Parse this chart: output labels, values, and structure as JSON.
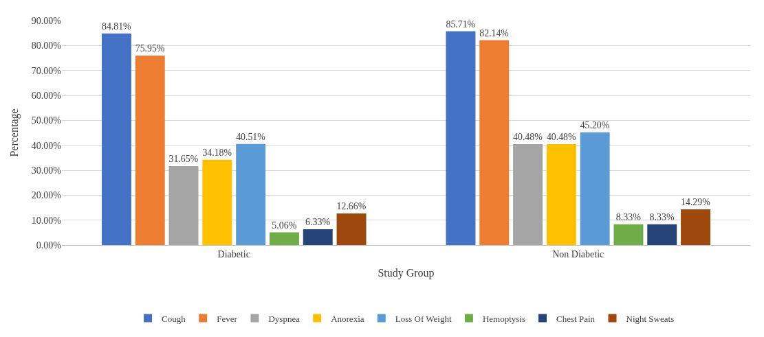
{
  "chart_data": {
    "type": "bar",
    "xlabel": "Study Group",
    "ylabel": "Percentage",
    "categories": [
      "Diabetic",
      "Non Diabetic"
    ],
    "series": [
      {
        "name": "Cough",
        "color": "#4472c4",
        "values": [
          84.81,
          85.71
        ],
        "value_labels": [
          "84.81%",
          "85.71%"
        ]
      },
      {
        "name": "Fever",
        "color": "#ed7d31",
        "values": [
          75.95,
          82.14
        ],
        "value_labels": [
          "75.95%",
          "82.14%"
        ]
      },
      {
        "name": "Dyspnea",
        "color": "#a5a5a5",
        "values": [
          31.65,
          40.48
        ],
        "value_labels": [
          "31.65%",
          "40.48%"
        ]
      },
      {
        "name": "Anorexia",
        "color": "#ffc000",
        "values": [
          34.18,
          40.48
        ],
        "value_labels": [
          "34.18%",
          "40.48%"
        ]
      },
      {
        "name": "Loss Of Weight",
        "color": "#5b9bd5",
        "values": [
          40.51,
          45.2
        ],
        "value_labels": [
          "40.51%",
          "45.20%"
        ]
      },
      {
        "name": "Hemoptysis",
        "color": "#70ad47",
        "values": [
          5.06,
          8.33
        ],
        "value_labels": [
          "5.06%",
          "8.33%"
        ]
      },
      {
        "name": "Chest Pain",
        "color": "#264478",
        "values": [
          6.33,
          8.33
        ],
        "value_labels": [
          "6.33%",
          "8.33%"
        ]
      },
      {
        "name": "Night Sweats",
        "color": "#9e480e",
        "values": [
          12.66,
          14.29
        ],
        "value_labels": [
          "12.66%",
          "14.29%"
        ]
      }
    ],
    "ylim": [
      0,
      90
    ],
    "yticks": [
      {
        "value": 0,
        "label": "0.00%"
      },
      {
        "value": 10,
        "label": "10.00%"
      },
      {
        "value": 20,
        "label": "20.00%"
      },
      {
        "value": 30,
        "label": "30.00%"
      },
      {
        "value": 40,
        "label": "40.00%"
      },
      {
        "value": 50,
        "label": "50.00%"
      },
      {
        "value": 60,
        "label": "60.00%"
      },
      {
        "value": 70,
        "label": "70.00%"
      },
      {
        "value": 80,
        "label": "80.00%"
      },
      {
        "value": 90,
        "label": "90.00%"
      }
    ],
    "grid": "y",
    "legend": "bottom"
  }
}
